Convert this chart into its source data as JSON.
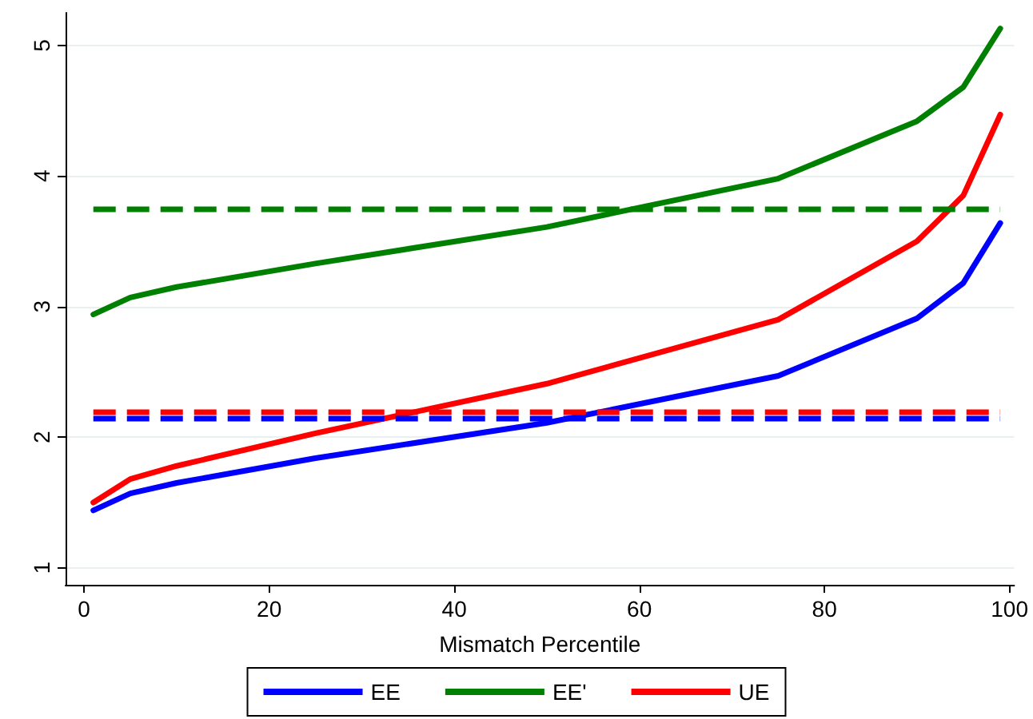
{
  "chart_data": {
    "type": "line",
    "xlabel": "Mismatch Percentile",
    "x": [
      1,
      5,
      10,
      25,
      50,
      75,
      90,
      95,
      99
    ],
    "series": [
      {
        "name": "EE",
        "color": "#0000ff",
        "values": [
          1.44,
          1.57,
          1.65,
          1.84,
          2.11,
          2.47,
          2.91,
          3.18,
          3.64
        ]
      },
      {
        "name": "EE'",
        "color": "#008000",
        "values": [
          2.94,
          3.07,
          3.15,
          3.33,
          3.61,
          3.98,
          4.42,
          4.68,
          5.13
        ]
      },
      {
        "name": "UE",
        "color": "#ff0000",
        "values": [
          1.5,
          1.68,
          1.78,
          2.03,
          2.41,
          2.9,
          3.5,
          3.85,
          4.47
        ]
      }
    ],
    "ref_lines": [
      {
        "axis": "y",
        "value": 3.75,
        "color": "#008000",
        "line_style": "dashed"
      },
      {
        "axis": "y",
        "value": 2.19,
        "color": "#ff0000",
        "line_style": "dashed"
      },
      {
        "axis": "y",
        "value": 2.15,
        "color": "#0000ff",
        "line_style": "dashed"
      }
    ],
    "xlim": [
      -2,
      100.5
    ],
    "xticks": [
      0,
      20,
      40,
      60,
      80,
      100
    ],
    "ylim": [
      0.87,
      5.25
    ],
    "yticks": [
      1,
      2,
      3,
      4,
      5
    ],
    "grid": "y",
    "legend": "bottom",
    "marker": "none",
    "line_style": "solid"
  }
}
